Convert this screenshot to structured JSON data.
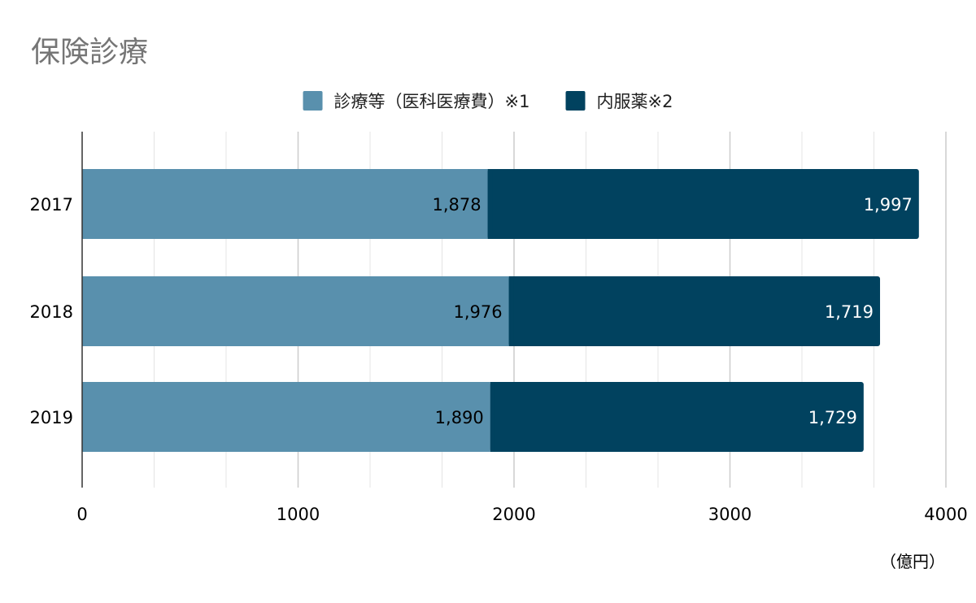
{
  "chart_data": {
    "type": "bar",
    "orientation": "horizontal",
    "stacked": true,
    "title": "保険診療",
    "categories": [
      "2017",
      "2018",
      "2019"
    ],
    "series": [
      {
        "name": "診療等（医科医療費）※1",
        "values": [
          1878,
          1976,
          1890
        ],
        "color": "#5990ad",
        "label_color": "#000000"
      },
      {
        "name": "内服薬※2",
        "values": [
          1997,
          1719,
          1729
        ],
        "color": "#01425f",
        "label_color": "#ffffff"
      }
    ],
    "data_labels": [
      [
        "1,878",
        "1,976",
        "1,890"
      ],
      [
        "1,997",
        "1,719",
        "1,729"
      ]
    ],
    "xlim": [
      0,
      4000
    ],
    "xticks": [
      0,
      1000,
      2000,
      3000,
      4000
    ],
    "unit": "（億円）",
    "legend_position": "top",
    "grid": true
  }
}
